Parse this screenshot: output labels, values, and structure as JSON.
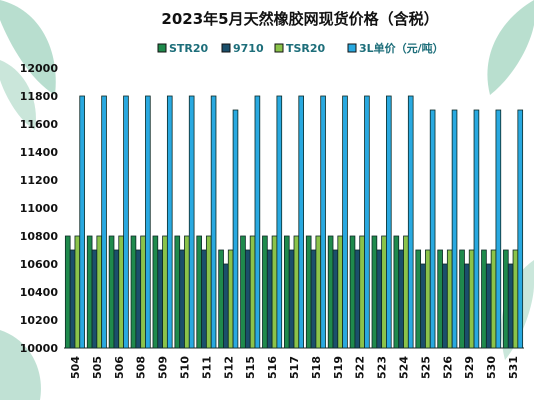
{
  "chart_data": {
    "type": "bar",
    "title": "2023年5月天然橡胶网现货价格（含税）",
    "categories": [
      "504",
      "505",
      "506",
      "508",
      "509",
      "510",
      "511",
      "512",
      "515",
      "516",
      "517",
      "518",
      "519",
      "522",
      "523",
      "524",
      "525",
      "526",
      "529",
      "530",
      "531"
    ],
    "series": [
      {
        "name": "STR20",
        "color": "#1f8a4c",
        "values": [
          10800,
          10800,
          10800,
          10800,
          10800,
          10800,
          10800,
          10700,
          10800,
          10800,
          10800,
          10800,
          10800,
          10800,
          10800,
          10800,
          10700,
          10700,
          10700,
          10700,
          10700
        ]
      },
      {
        "name": "9710",
        "color": "#1b4f6b",
        "values": [
          10700,
          10700,
          10700,
          10700,
          10700,
          10700,
          10700,
          10600,
          10700,
          10700,
          10700,
          10700,
          10700,
          10700,
          10700,
          10700,
          10600,
          10600,
          10600,
          10600,
          10600
        ]
      },
      {
        "name": "TSR20",
        "color": "#8bc34a",
        "values": [
          10800,
          10800,
          10800,
          10800,
          10800,
          10800,
          10800,
          10700,
          10800,
          10800,
          10800,
          10800,
          10800,
          10800,
          10800,
          10800,
          10700,
          10700,
          10700,
          10700,
          10700
        ]
      },
      {
        "name": "3L单价（元/吨）",
        "color": "#29a9e0",
        "values": [
          11800,
          11800,
          11800,
          11800,
          11800,
          11800,
          11800,
          11700,
          11800,
          11800,
          11800,
          11800,
          11800,
          11800,
          11800,
          11800,
          11700,
          11700,
          11700,
          11700,
          11700
        ]
      }
    ],
    "ylim": [
      10000,
      12000
    ],
    "yticks": [
      10000,
      10200,
      10400,
      10600,
      10800,
      11000,
      11200,
      11400,
      11600,
      11800,
      12000
    ],
    "legend_position": "top",
    "grid": false
  }
}
